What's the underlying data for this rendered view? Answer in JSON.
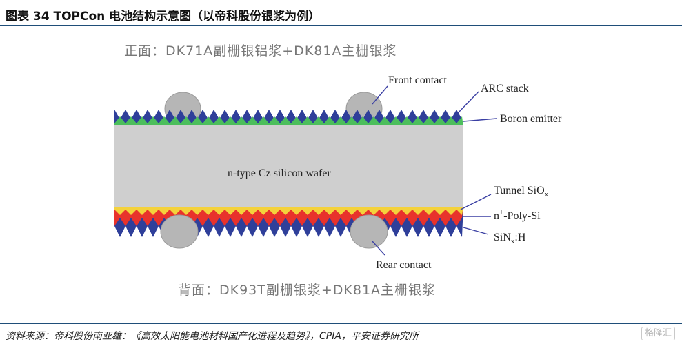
{
  "figure": {
    "title": "图表 34   TOPCon 电池结构示意图（以帝科股份银浆为例）",
    "front_caption": "正面：DK71A副栅银铝浆+DK81A主栅银浆",
    "back_caption": "背面：DK93T副栅银浆+DK81A主栅银浆",
    "wafer_label": "n-type Cz silicon wafer",
    "labels": {
      "front_contact": "Front contact",
      "arc_stack": "ARC stack",
      "boron_emitter": "Boron emitter",
      "tunnel_sio_main": "Tunnel SiO",
      "tunnel_sio_sub": "x",
      "poly_prefix": "n",
      "poly_sup": "+",
      "poly_rest": "-Poly-Si",
      "sin_main": "SiN",
      "sin_sub": "x",
      "sin_rest": ":H",
      "rear_contact": "Rear contact"
    },
    "colors": {
      "wafer": "#cfcfcf",
      "arc": "#2f3f9a",
      "emitter": "#4cbe5c",
      "sin": "#2f3f9a",
      "poly": "#e8322c",
      "tunnel": "#f4d23c",
      "contact": "#b6b6b6",
      "leader": "#3a3fa3"
    }
  },
  "source": "资料来源：帝科股份南亚雄：《高效太阳能电池材料国产化进程及趋势》，CPIA，平安证券研究所",
  "watermark": "格隆汇"
}
